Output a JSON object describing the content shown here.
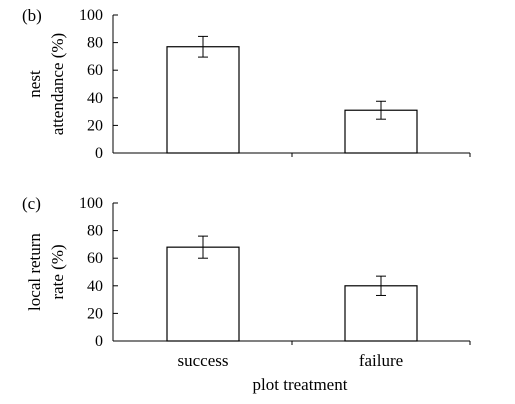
{
  "chart_data": [
    {
      "type": "bar",
      "panel_label": "(b)",
      "categories": [
        "success",
        "failure"
      ],
      "values": [
        77,
        31
      ],
      "errors": [
        7.5,
        6.5
      ],
      "ylabel_lines": [
        "nest",
        "attendance (%)"
      ],
      "ylim": [
        0,
        100
      ],
      "yticks": [
        "100",
        "80",
        "60",
        "40",
        "20",
        "0"
      ],
      "show_category_labels": false,
      "grid": false,
      "colors": {
        "bar_fill": "#ffffff",
        "bar_stroke": "#000000"
      }
    },
    {
      "type": "bar",
      "panel_label": "(c)",
      "categories": [
        "success",
        "failure"
      ],
      "values": [
        68,
        40
      ],
      "errors": [
        8,
        7
      ],
      "ylabel_lines": [
        "local return",
        "rate (%)"
      ],
      "ylim": [
        0,
        100
      ],
      "yticks": [
        "100",
        "80",
        "60",
        "40",
        "20",
        "0"
      ],
      "show_category_labels": true,
      "grid": false,
      "colors": {
        "bar_fill": "#ffffff",
        "bar_stroke": "#000000"
      }
    }
  ],
  "xlabel": "plot treatment"
}
